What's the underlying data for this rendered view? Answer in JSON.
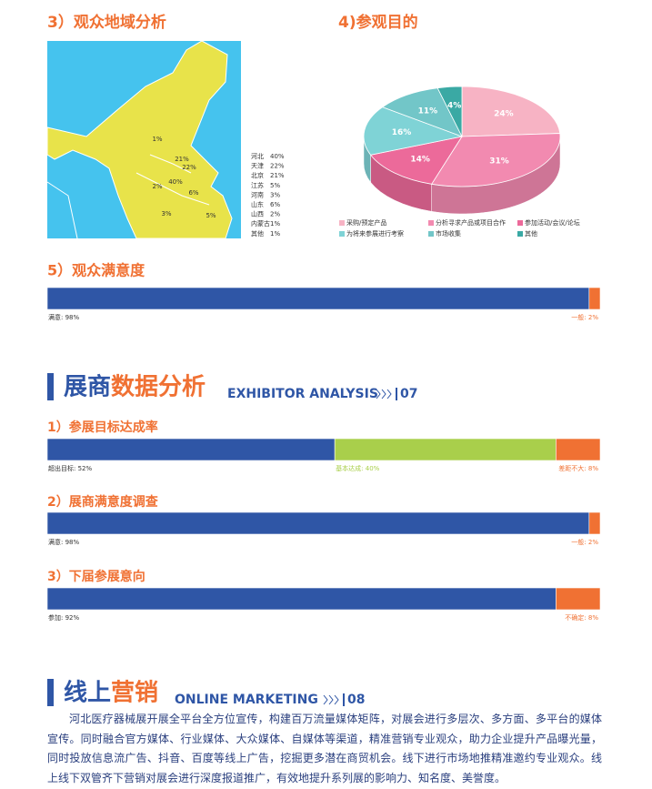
{
  "region": {
    "title": "3）观众地域分析",
    "categories": [
      "河北",
      "天津",
      "北京",
      "江苏",
      "河南",
      "山东",
      "山西",
      "内蒙古",
      "其他"
    ],
    "values": [
      40,
      22,
      21,
      5,
      3,
      6,
      2,
      1,
      1
    ],
    "value_labels": [
      "40%",
      "22%",
      "21%",
      "5%",
      "3%",
      "6%",
      "2%",
      "1%",
      "1%"
    ]
  },
  "purpose": {
    "type": "pie",
    "title": "4)参观目的",
    "categories": [
      "采购/预定产品",
      "分析寻求产品或项目合作",
      "参加活动/会议/论坛",
      "为将来参展进行考察",
      "市场收集",
      "其他"
    ],
    "values": [
      24,
      31,
      14,
      16,
      11,
      4
    ],
    "value_labels": [
      "24%",
      "31%",
      "14%",
      "16%",
      "11%",
      "4%"
    ],
    "colors": [
      "#f7b3c4",
      "#f28ab0",
      "#ec6a9a",
      "#7fd3d6",
      "#72c6c8",
      "#3aa9a4"
    ]
  },
  "visitor_satisfaction": {
    "type": "stacked-bar",
    "title": "5）观众满意度",
    "xlim": [
      0,
      100
    ],
    "segments": [
      {
        "value": 98,
        "label": "满意: 98%",
        "color": "#2f56a6"
      },
      {
        "value": 2,
        "label": "一般: 2%",
        "color": "#f07133"
      }
    ]
  },
  "exhibitor_heading": {
    "a": "展商",
    "b": "数据分析",
    "en": "EXHIBITOR ANALYSIS",
    "num": "07"
  },
  "goal": {
    "type": "stacked-bar",
    "title": "1）参展目标达成率",
    "xlim": [
      0,
      100
    ],
    "segments": [
      {
        "value": 52,
        "label": "超出目标: 52%",
        "color": "#2f56a6"
      },
      {
        "value": 40,
        "label": "基本达成: 40%",
        "color": "#a9cf4b"
      },
      {
        "value": 8,
        "label": "差距不大: 8%",
        "color": "#f07133"
      }
    ]
  },
  "exhibitor_satisfaction": {
    "type": "stacked-bar",
    "title": "2）展商满意度调查",
    "xlim": [
      0,
      100
    ],
    "segments": [
      {
        "value": 98,
        "label": "满意: 98%",
        "color": "#2f56a6"
      },
      {
        "value": 2,
        "label": "一般: 2%",
        "color": "#f07133"
      }
    ]
  },
  "intention": {
    "type": "stacked-bar",
    "title": "3）下届参展意向",
    "xlim": [
      0,
      100
    ],
    "segments": [
      {
        "value": 92,
        "label": "参加: 92%",
        "color": "#2f56a6"
      },
      {
        "value": 8,
        "label": "不确定: 8%",
        "color": "#f07133"
      }
    ]
  },
  "online_heading": {
    "a": "线上",
    "b": "营销",
    "en": "ONLINE MARKETING",
    "num": "08"
  },
  "online_text": "河北医疗器械展开展全平台全方位宣传，构建百万流量媒体矩阵，对展会进行多层次、多方面、多平台的媒体宣传。同时融合官方媒体、行业媒体、大众媒体、自媒体等渠道，精准营销专业观众，助力企业提升产品曝光量，同时投放信息流广告、抖音、百度等线上广告，挖掘更多潜在商贸机会。线下进行市场地推精准邀约专业观众。线上线下双管齐下营销对展会进行深度报道推广，有效地提升系列展的影响力、知名度、美誉度。"
}
